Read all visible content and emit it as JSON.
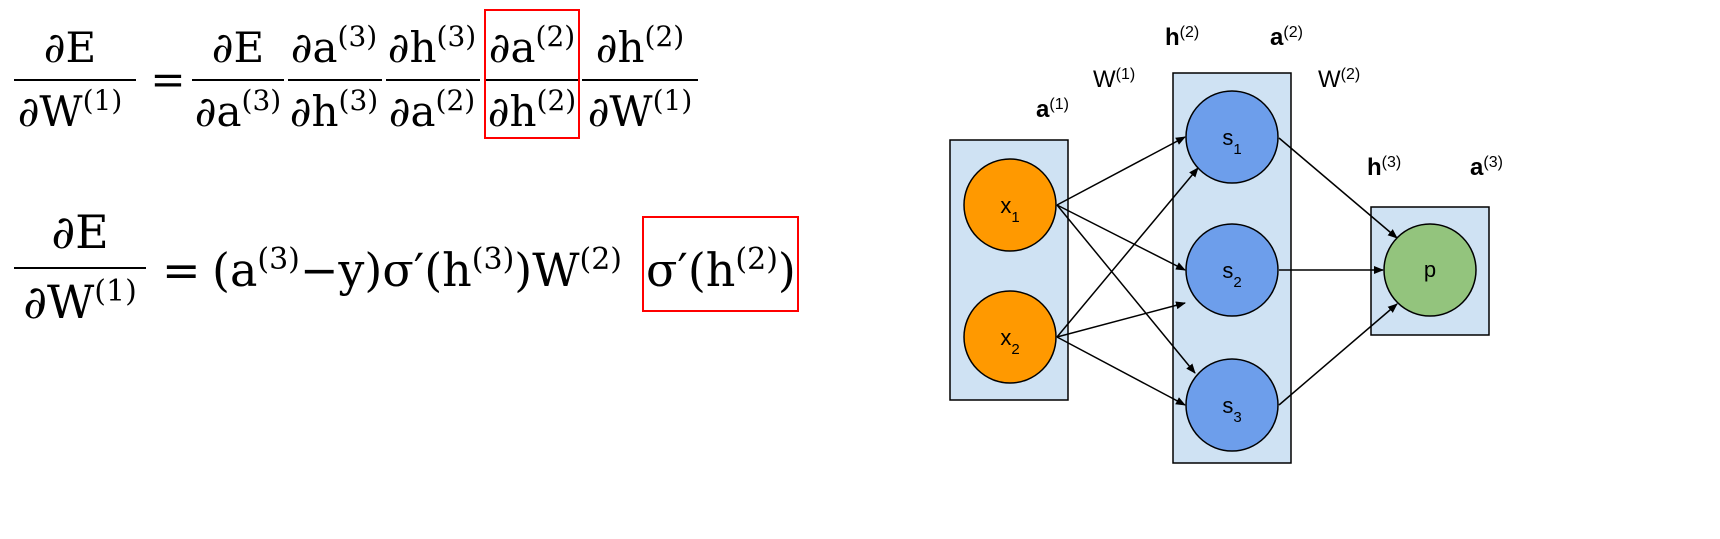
{
  "colors": {
    "highlight_box": "#ff0000",
    "layer_fill": "#cfe2f3",
    "input_node": "#ff9900",
    "hidden_node": "#6d9eeb",
    "output_node": "#93c47d",
    "stroke": "#000000"
  },
  "equation1": {
    "lhs": {
      "num": "∂E",
      "den_main": "∂W",
      "den_sup": "(1)"
    },
    "equals": "=",
    "factors": [
      {
        "num_main": "∂E",
        "num_sup": "",
        "den_main": "∂a",
        "den_sup": "(3)",
        "highlighted": false
      },
      {
        "num_main": "∂a",
        "num_sup": "(3)",
        "den_main": "∂h",
        "den_sup": "(3)",
        "highlighted": false
      },
      {
        "num_main": "∂h",
        "num_sup": "(3)",
        "den_main": "∂a",
        "den_sup": "(2)",
        "highlighted": false
      },
      {
        "num_main": "∂a",
        "num_sup": "(2)",
        "den_main": "∂h",
        "den_sup": "(2)",
        "highlighted": true
      },
      {
        "num_main": "∂h",
        "num_sup": "(2)",
        "den_main": "∂W",
        "den_sup": "(1)",
        "highlighted": false
      }
    ]
  },
  "equation2": {
    "lhs": {
      "num": "∂E",
      "den_main": "∂W",
      "den_sup": "(1)"
    },
    "equals": "=",
    "t1": "(a",
    "t1_sup": "(3)",
    "t2": "−y)σ′(h",
    "t2_sup": "(3)",
    "t3": ")W",
    "t3_sup": "(2)",
    "highlight": {
      "t1": "σ′(h",
      "sup": "(2)",
      "t2": ")"
    }
  },
  "network": {
    "labels": {
      "a1": {
        "main": "a",
        "sup": "(1)"
      },
      "w1": {
        "main": "W",
        "sup": "(1)"
      },
      "h2": {
        "main": "h",
        "sup": "(2)"
      },
      "a2": {
        "main": "a",
        "sup": "(2)"
      },
      "w2": {
        "main": "W",
        "sup": "(2)"
      },
      "h3": {
        "main": "h",
        "sup": "(3)"
      },
      "a3": {
        "main": "a",
        "sup": "(3)"
      }
    },
    "nodes": {
      "x1": {
        "main": "x",
        "sub": "1"
      },
      "x2": {
        "main": "x",
        "sub": "2"
      },
      "s1": {
        "main": "s",
        "sub": "1"
      },
      "s2": {
        "main": "s",
        "sub": "2"
      },
      "s3": {
        "main": "s",
        "sub": "3"
      },
      "p": {
        "main": "p",
        "sub": ""
      }
    }
  }
}
